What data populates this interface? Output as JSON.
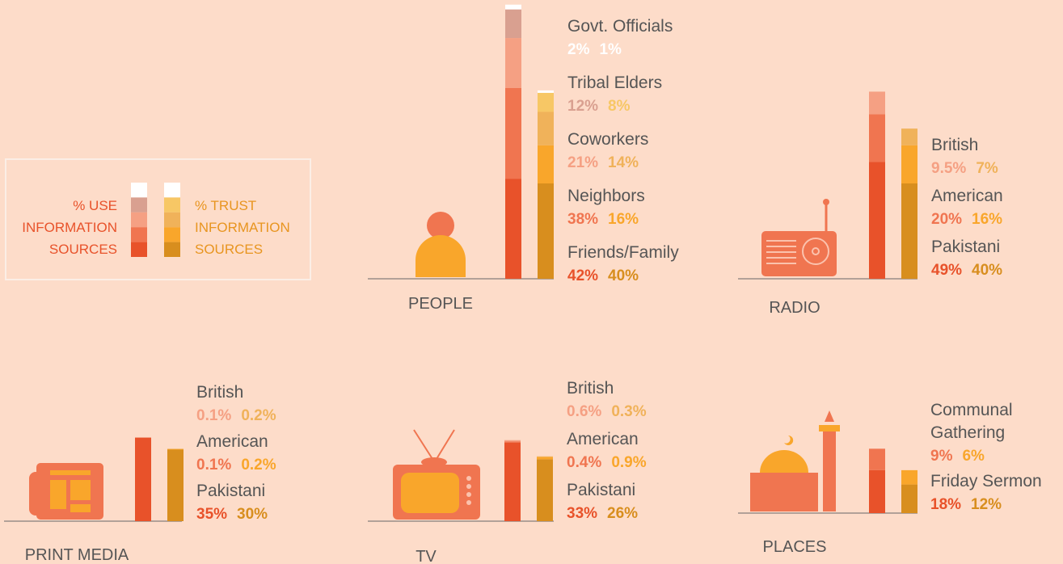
{
  "legend": {
    "use": [
      "% USE",
      "INFORMATION",
      "SOURCES"
    ],
    "trust": [
      "% TRUST",
      "INFORMATION",
      "SOURCES"
    ]
  },
  "chart_data": [
    {
      "type": "stacked_bar",
      "title": "PEOPLE",
      "series": [
        {
          "name": "Govt. Officials",
          "values": [
            2,
            1
          ],
          "value_labels": [
            "2%",
            "1%"
          ],
          "colors": [
            "#ffffff",
            "#ffffff"
          ]
        },
        {
          "name": "Tribal Elders",
          "values": [
            12,
            8
          ],
          "value_labels": [
            "12%",
            "8%"
          ],
          "colors": [
            "#d9a090",
            "#f7c765"
          ]
        },
        {
          "name": "Coworkers",
          "values": [
            21,
            14
          ],
          "value_labels": [
            "21%",
            "14%"
          ],
          "colors": [
            "#f5a083",
            "#f0b25a"
          ]
        },
        {
          "name": "Neighbors",
          "values": [
            38,
            16
          ],
          "value_labels": [
            "38%",
            "16%"
          ],
          "colors": [
            "#f07550",
            "#f9a62b"
          ]
        },
        {
          "name": "Friends/Family",
          "values": [
            42,
            40
          ],
          "value_labels": [
            "42%",
            "40%"
          ],
          "colors": [
            "#e8522a",
            "#d88e1e"
          ]
        }
      ]
    },
    {
      "type": "stacked_bar",
      "title": "RADIO",
      "series": [
        {
          "name": "British",
          "values": [
            9.5,
            7
          ],
          "value_labels": [
            "9.5%",
            "7%"
          ],
          "colors": [
            "#f5a083",
            "#f0b25a"
          ]
        },
        {
          "name": "American",
          "values": [
            20,
            16
          ],
          "value_labels": [
            "20%",
            "16%"
          ],
          "colors": [
            "#f07550",
            "#f9a62b"
          ]
        },
        {
          "name": "Pakistani",
          "values": [
            49,
            40
          ],
          "value_labels": [
            "49%",
            "40%"
          ],
          "colors": [
            "#e8522a",
            "#d88e1e"
          ]
        }
      ]
    },
    {
      "type": "stacked_bar",
      "title": "PRINT MEDIA",
      "series": [
        {
          "name": "British",
          "values": [
            0.1,
            0.2
          ],
          "value_labels": [
            "0.1%",
            "0.2%"
          ],
          "colors": [
            "#f5a083",
            "#f0b25a"
          ]
        },
        {
          "name": "American",
          "values": [
            0.1,
            0.2
          ],
          "value_labels": [
            "0.1%",
            "0.2%"
          ],
          "colors": [
            "#f07550",
            "#f9a62b"
          ]
        },
        {
          "name": "Pakistani",
          "values": [
            35,
            30
          ],
          "value_labels": [
            "35%",
            "30%"
          ],
          "colors": [
            "#e8522a",
            "#d88e1e"
          ]
        }
      ]
    },
    {
      "type": "stacked_bar",
      "title": "TV",
      "series": [
        {
          "name": "British",
          "values": [
            0.6,
            0.3
          ],
          "value_labels": [
            "0.6%",
            "0.3%"
          ],
          "colors": [
            "#f5a083",
            "#f0b25a"
          ]
        },
        {
          "name": "American",
          "values": [
            0.4,
            0.9
          ],
          "value_labels": [
            "0.4%",
            "0.9%"
          ],
          "colors": [
            "#f07550",
            "#f9a62b"
          ]
        },
        {
          "name": "Pakistani",
          "values": [
            33,
            26
          ],
          "value_labels": [
            "33%",
            "26%"
          ],
          "colors": [
            "#e8522a",
            "#d88e1e"
          ]
        }
      ]
    },
    {
      "type": "stacked_bar",
      "title": "PLACES",
      "series": [
        {
          "name": "Communal Gathering",
          "values": [
            9,
            6
          ],
          "value_labels": [
            "9%",
            "6%"
          ],
          "colors": [
            "#f07550",
            "#f9a62b"
          ]
        },
        {
          "name": "Friday Sermon",
          "values": [
            18,
            12
          ],
          "value_labels": [
            "18%",
            "12%"
          ],
          "colors": [
            "#e8522a",
            "#d88e1e"
          ]
        }
      ]
    }
  ]
}
